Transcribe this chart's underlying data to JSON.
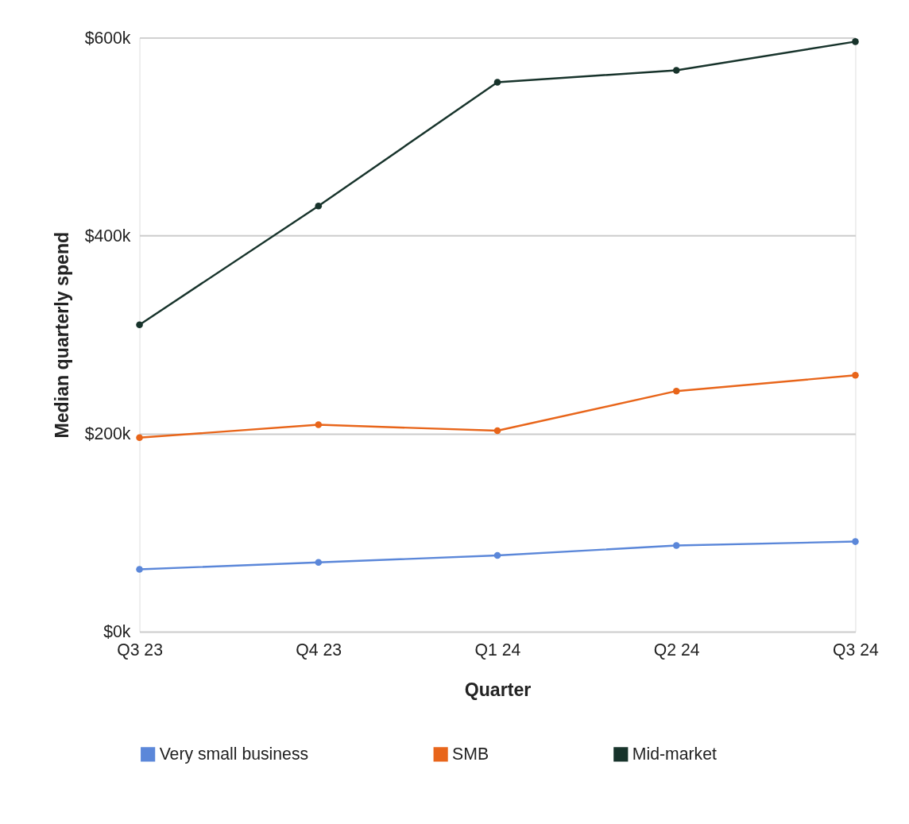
{
  "chart_data": {
    "type": "line",
    "xlabel": "Quarter",
    "ylabel": "Median quarterly spend",
    "categories": [
      "Q3 23",
      "Q4 23",
      "Q1 24",
      "Q2 24",
      "Q3 24"
    ],
    "series": [
      {
        "name": "Very small business",
        "color": "#5b87d9",
        "values": [
          63,
          70,
          77,
          87,
          91
        ]
      },
      {
        "name": "SMB",
        "color": "#e8651a",
        "values": [
          196,
          209,
          203,
          243,
          259
        ]
      },
      {
        "name": "Mid-market",
        "color": "#17332b",
        "values": [
          310,
          430,
          555,
          567,
          596
        ]
      }
    ],
    "ylim": [
      0,
      600
    ],
    "yticks": [
      {
        "value": 0,
        "label": "$0k"
      },
      {
        "value": 200,
        "label": "$200k"
      },
      {
        "value": 400,
        "label": "$400k"
      },
      {
        "value": 600,
        "label": "$600k"
      }
    ],
    "grid": "y",
    "legend": "bottom",
    "marker": "circle",
    "line_style": "solid"
  }
}
